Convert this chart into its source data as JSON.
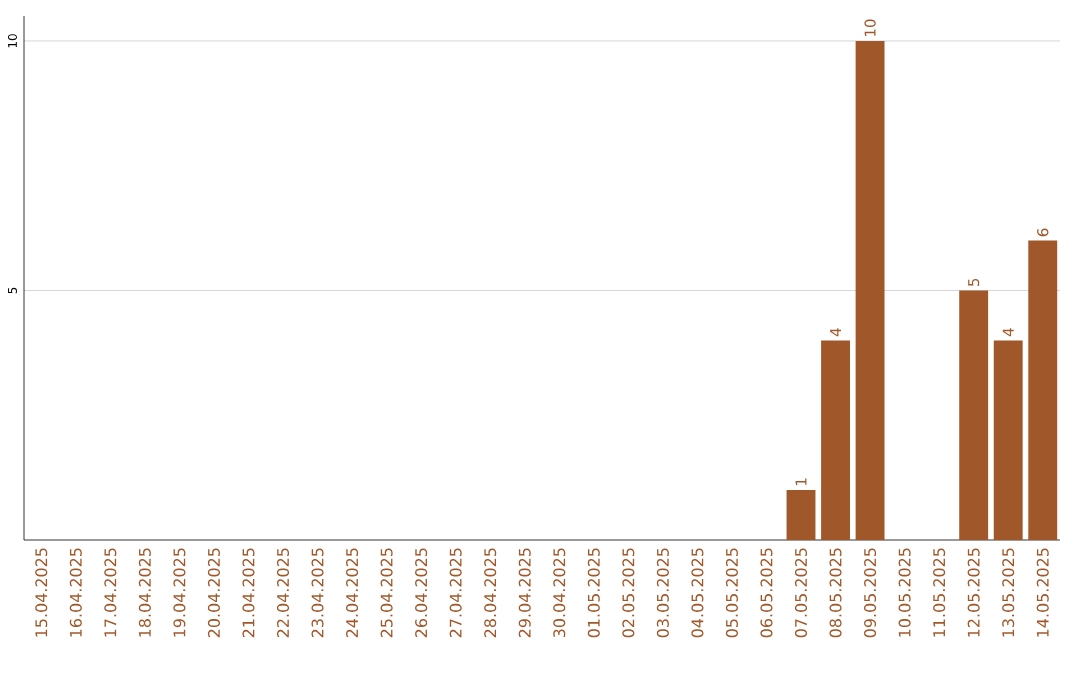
{
  "chart_data": {
    "type": "bar",
    "categories": [
      "15.04.2025",
      "16.04.2025",
      "17.04.2025",
      "18.04.2025",
      "19.04.2025",
      "20.04.2025",
      "21.04.2025",
      "22.04.2025",
      "23.04.2025",
      "24.04.2025",
      "25.04.2025",
      "26.04.2025",
      "27.04.2025",
      "28.04.2025",
      "29.04.2025",
      "30.04.2025",
      "01.05.2025",
      "02.05.2025",
      "03.05.2025",
      "04.05.2025",
      "05.05.2025",
      "06.05.2025",
      "07.05.2025",
      "08.05.2025",
      "09.05.2025",
      "10.05.2025",
      "11.05.2025",
      "12.05.2025",
      "13.05.2025",
      "14.05.2025"
    ],
    "values": [
      0,
      0,
      0,
      0,
      0,
      0,
      0,
      0,
      0,
      0,
      0,
      0,
      0,
      0,
      0,
      0,
      0,
      0,
      0,
      0,
      0,
      0,
      1,
      4,
      10,
      0,
      0,
      5,
      4,
      6
    ],
    "value_labels": [
      null,
      null,
      null,
      null,
      null,
      null,
      null,
      null,
      null,
      null,
      null,
      null,
      null,
      null,
      null,
      null,
      null,
      null,
      null,
      null,
      null,
      null,
      "1",
      "4",
      "10",
      null,
      null,
      "5",
      "4",
      "6"
    ],
    "color": "#a0582a",
    "ylim": [
      0,
      10.5
    ],
    "yticks": [
      5,
      10
    ],
    "grid": "y"
  }
}
